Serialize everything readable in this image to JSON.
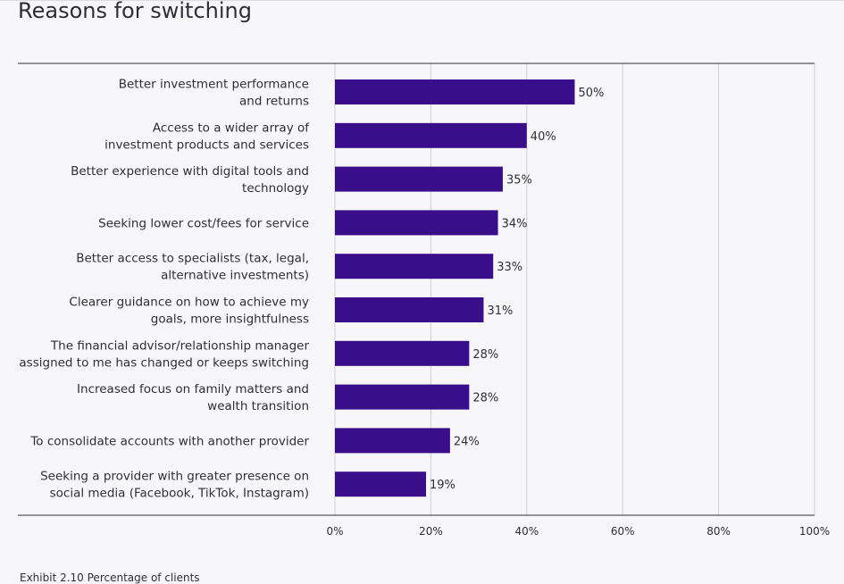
{
  "page": {
    "title": "Reasons for switching",
    "caption": "Exhibit 2.10 Percentage of clients"
  },
  "chart_data": {
    "type": "bar",
    "orientation": "horizontal",
    "categories": [
      [
        "Better investment performance",
        "and returns"
      ],
      [
        "Access to a wider array of",
        "investment products and services"
      ],
      [
        "Better experience with digital tools and",
        "technology"
      ],
      [
        "Seeking lower cost/fees for service"
      ],
      [
        "Better access to specialists (tax, legal,",
        "alternative investments)"
      ],
      [
        "Clearer guidance on how to achieve my",
        "goals, more insightfulness"
      ],
      [
        "The financial advisor/relationship manager",
        "assigned to me has changed or keeps switching"
      ],
      [
        "Increased focus on family matters and",
        "wealth transition"
      ],
      [
        "To consolidate accounts with another provider"
      ],
      [
        "Seeking a provider with greater presence on",
        "social media (Facebook, TikTok, Instagram)"
      ]
    ],
    "values": [
      50,
      40,
      35,
      34,
      33,
      31,
      28,
      28,
      24,
      19
    ],
    "value_labels": [
      "50%",
      "40%",
      "35%",
      "34%",
      "33%",
      "31%",
      "28%",
      "28%",
      "24%",
      "19%"
    ],
    "xlim": [
      0,
      100
    ],
    "xticks": [
      0,
      20,
      40,
      60,
      80,
      100
    ],
    "xtick_labels": [
      "0%",
      "20%",
      "40%",
      "60%",
      "80%",
      "100%"
    ],
    "grid": true,
    "bar_color": "#3a0d8a"
  }
}
